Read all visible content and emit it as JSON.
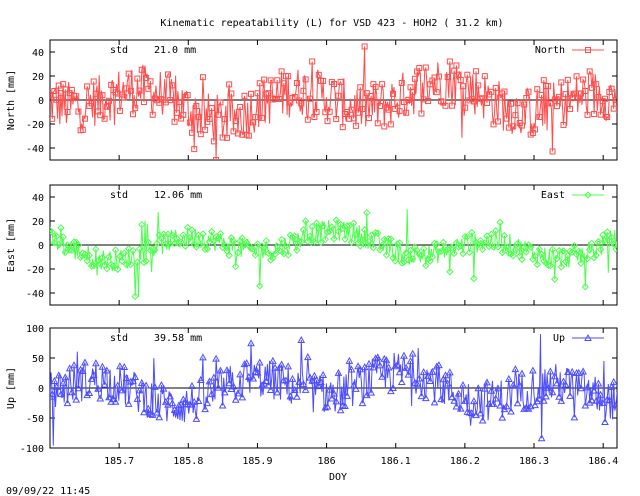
{
  "title": "Kinematic repeatability (L) for VSD 423 - HOH2  ( 31.2 km)",
  "timestamp": "09/09/22 11:45",
  "chart_data": [
    {
      "type": "line",
      "ylabel": "North [mm]",
      "ylim": [
        -50,
        50
      ],
      "yticks": [
        -40,
        -20,
        0,
        20,
        40
      ],
      "series": [
        {
          "name": "North",
          "color": "#ff4d4d",
          "marker": "square"
        }
      ],
      "stat_label": "std",
      "stat_value": "21.0",
      "stat_unit": "mm",
      "profile": {
        "amp": 21,
        "lowfreq": 10,
        "spike": 18
      }
    },
    {
      "type": "line",
      "ylabel": "East [mm]",
      "ylim": [
        -50,
        50
      ],
      "yticks": [
        -40,
        -20,
        0,
        20,
        40
      ],
      "series": [
        {
          "name": "East",
          "color": "#4dff4d",
          "marker": "diamond"
        }
      ],
      "stat_label": "std",
      "stat_value": "12.06",
      "stat_unit": "mm",
      "profile": {
        "amp": 9,
        "lowfreq": 8,
        "spike": 16
      }
    },
    {
      "type": "line",
      "ylabel": "Up [mm]",
      "ylim": [
        -100,
        100
      ],
      "yticks": [
        -100,
        -50,
        0,
        50,
        100
      ],
      "series": [
        {
          "name": "Up",
          "color": "#4d4dff",
          "marker": "triangle"
        }
      ],
      "stat_label": "std",
      "stat_value": "39.58",
      "stat_unit": "mm",
      "xlabel": "DOY",
      "xlim": [
        185.6,
        186.42
      ],
      "xticks": [
        "185.7",
        "185.8",
        "185.9",
        "186",
        "186.1",
        "186.2",
        "186.3",
        "186.4"
      ],
      "profile": {
        "amp": 34,
        "lowfreq": 18,
        "spike": 40
      }
    }
  ]
}
